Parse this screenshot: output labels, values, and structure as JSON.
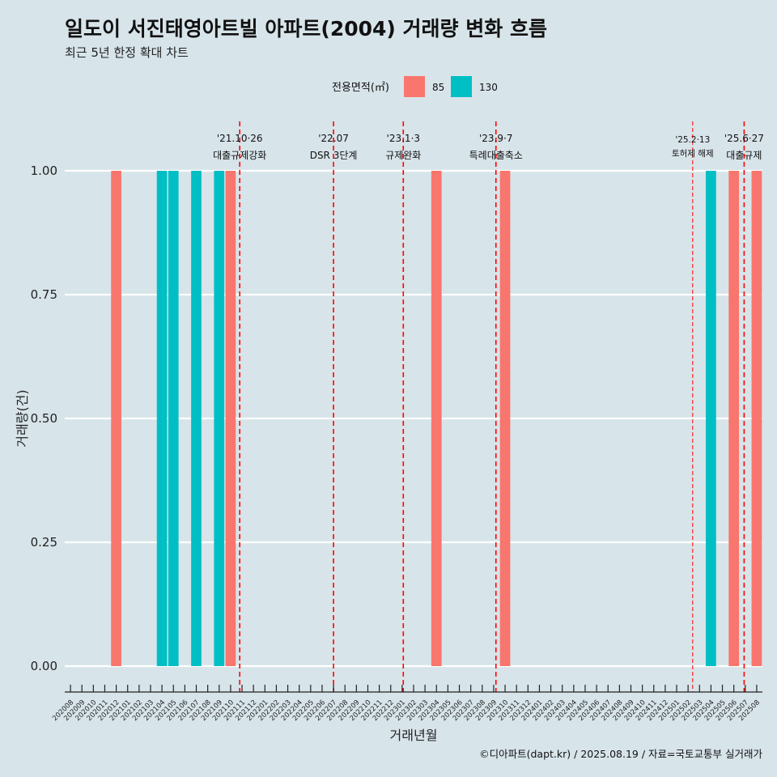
{
  "chart_data": {
    "type": "bar",
    "title": "일도이 서진태영아트빌 아파트(2004) 거래량 변화 흐름",
    "subtitle": "최근 5년 한정 확대 차트",
    "xlabel": "거래년월",
    "ylabel": "거래량(건)",
    "ylim": [
      0,
      1
    ],
    "yticks": [
      "0.00",
      "0.25",
      "0.50",
      "0.75",
      "1.00"
    ],
    "legend": {
      "title": "전용면적(㎡)",
      "placement": "top",
      "entries": [
        {
          "label": "85",
          "color": "#f8766d"
        },
        {
          "label": "130",
          "color": "#00bfc4"
        }
      ]
    },
    "categories": [
      "202008",
      "202009",
      "202010",
      "202011",
      "202012",
      "202101",
      "202102",
      "202103",
      "202104",
      "202105",
      "202106",
      "202107",
      "202108",
      "202109",
      "202110",
      "202111",
      "202112",
      "202201",
      "202202",
      "202203",
      "202204",
      "202205",
      "202206",
      "202207",
      "202208",
      "202209",
      "202210",
      "202211",
      "202212",
      "202301",
      "202302",
      "202303",
      "202304",
      "202305",
      "202306",
      "202307",
      "202308",
      "202309",
      "202310",
      "202311",
      "202312",
      "202401",
      "202402",
      "202403",
      "202404",
      "202405",
      "202406",
      "202407",
      "202408",
      "202409",
      "202410",
      "202411",
      "202412",
      "202501",
      "202502",
      "202503",
      "202504",
      "202505",
      "202506",
      "202507",
      "202508"
    ],
    "bars": [
      {
        "x": "202012",
        "series": "85",
        "value": 1
      },
      {
        "x": "202104",
        "series": "130",
        "value": 1
      },
      {
        "x": "202105",
        "series": "130",
        "value": 1
      },
      {
        "x": "202107",
        "series": "130",
        "value": 1
      },
      {
        "x": "202109",
        "series": "130",
        "value": 1
      },
      {
        "x": "202110",
        "series": "85",
        "value": 1
      },
      {
        "x": "202304",
        "series": "85",
        "value": 1
      },
      {
        "x": "202310",
        "series": "85",
        "value": 1
      },
      {
        "x": "202504",
        "series": "130",
        "value": 1
      },
      {
        "x": "202506",
        "series": "85",
        "value": 1
      },
      {
        "x": "202508",
        "series": "85",
        "value": 1
      }
    ],
    "annotations": [
      {
        "x": 202110.8,
        "date": "'21.10·26",
        "label": "대출규제강화",
        "style": "dashed",
        "small": false
      },
      {
        "x": 202207,
        "date": "'22.07",
        "label": "DSR 3단계",
        "style": "dashed",
        "small": false
      },
      {
        "x": 202301.1,
        "date": "'23.1·3",
        "label": "규제완화",
        "style": "dashed",
        "small": false
      },
      {
        "x": 202309.2,
        "date": "'23.9·7",
        "label": "특례대출축소",
        "style": "dashed",
        "small": false
      },
      {
        "x": 202502.4,
        "date": "'25.2·13",
        "label": "토허제 해제",
        "style": "thin",
        "small": true
      },
      {
        "x": 202506.9,
        "date": "'25.6·27",
        "label": "대출규제",
        "style": "dashed",
        "small": false
      }
    ]
  },
  "caption": "©디아파트(dapt.kr) / 2025.08.19 / 자료=국토교통부 실거래가"
}
